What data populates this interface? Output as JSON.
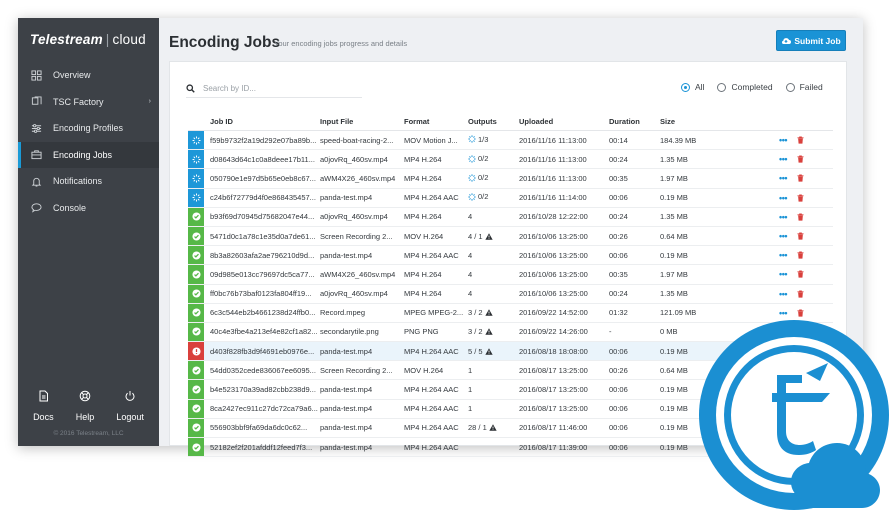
{
  "sidebar": {
    "logo_brand": "Telestream",
    "logo_product": "cloud",
    "items": [
      {
        "label": "Overview",
        "icon": "grid-icon",
        "active": false
      },
      {
        "label": "TSC Factory",
        "icon": "layers-icon",
        "active": false,
        "arrow": "›"
      },
      {
        "label": "Encoding Profiles",
        "icon": "sliders-icon",
        "active": false
      },
      {
        "label": "Encoding Jobs",
        "icon": "briefcase-icon",
        "active": true
      },
      {
        "label": "Notifications",
        "icon": "bell-icon",
        "active": false
      },
      {
        "label": "Console",
        "icon": "chat-icon",
        "active": false
      }
    ],
    "footer": [
      {
        "label": "Docs",
        "icon": "document-icon"
      },
      {
        "label": "Help",
        "icon": "lifebuoy-icon"
      },
      {
        "label": "Logout",
        "icon": "power-icon"
      }
    ],
    "copyright": "© 2016 Telestream, LLC"
  },
  "header": {
    "title": "Encoding Jobs",
    "subtitle": "Your encoding jobs progress and details",
    "submit_label": "Submit Job"
  },
  "search": {
    "placeholder": "Search by ID..."
  },
  "filters": [
    {
      "label": "All",
      "selected": true
    },
    {
      "label": "Completed",
      "selected": false
    },
    {
      "label": "Failed",
      "selected": false
    }
  ],
  "table": {
    "columns": {
      "job_id": "Job ID",
      "input": "Input File",
      "format": "Format",
      "outputs": "Outputs",
      "uploaded": "Uploaded",
      "duration": "Duration",
      "size": "Size"
    },
    "rows": [
      {
        "status": "processing",
        "id": "f59b9732f2a19d292e07ba89b...",
        "input": "speed-boat-racing-2...",
        "format": "MOV Motion J...",
        "outputs": "1/3",
        "warn": false,
        "spin": true,
        "uploaded": "2016/11/16 11:13:00",
        "duration": "00:14",
        "size": "184.39 MB"
      },
      {
        "status": "processing",
        "id": "d08643d64c1c0a8deee17b11...",
        "input": "a0jovRq_460sv.mp4",
        "format": "MP4 H.264",
        "outputs": "0/2",
        "warn": false,
        "spin": true,
        "uploaded": "2016/11/16 11:13:00",
        "duration": "00:24",
        "size": "1.35 MB"
      },
      {
        "status": "processing",
        "id": "050790e1e97d5b65e0eb8c67...",
        "input": "aWM4X26_460sv.mp4",
        "format": "MP4 H.264",
        "outputs": "0/2",
        "warn": false,
        "spin": true,
        "uploaded": "2016/11/16 11:13:00",
        "duration": "00:35",
        "size": "1.97 MB"
      },
      {
        "status": "processing",
        "id": "c24b6f72779d4f0e868435457...",
        "input": "panda-test.mp4",
        "format": "MP4 H.264 AAC",
        "outputs": "0/2",
        "warn": false,
        "spin": true,
        "uploaded": "2016/11/16 11:14:00",
        "duration": "00:06",
        "size": "0.19 MB"
      },
      {
        "status": "done",
        "id": "b93f69d70945d75682047e44...",
        "input": "a0jovRq_460sv.mp4",
        "format": "MP4 H.264",
        "outputs": "4",
        "warn": false,
        "spin": false,
        "uploaded": "2016/10/28 12:22:00",
        "duration": "00:24",
        "size": "1.35 MB"
      },
      {
        "status": "done",
        "id": "5471d0c1a78c1e35d0a7de61...",
        "input": "Screen Recording 2...",
        "format": "MOV H.264",
        "outputs": "4 / 1",
        "warn": true,
        "spin": false,
        "uploaded": "2016/10/06 13:25:00",
        "duration": "00:26",
        "size": "0.64 MB"
      },
      {
        "status": "done",
        "id": "8b3a82603afa2ae796210d9d...",
        "input": "panda-test.mp4",
        "format": "MP4 H.264 AAC",
        "outputs": "4",
        "warn": false,
        "spin": false,
        "uploaded": "2016/10/06 13:25:00",
        "duration": "00:06",
        "size": "0.19 MB"
      },
      {
        "status": "done",
        "id": "09d985e013cc79697dc5ca77...",
        "input": "aWM4X26_460sv.mp4",
        "format": "MP4 H.264",
        "outputs": "4",
        "warn": false,
        "spin": false,
        "uploaded": "2016/10/06 13:25:00",
        "duration": "00:35",
        "size": "1.97 MB"
      },
      {
        "status": "done",
        "id": "ff0bc76b73baf0123fa804ff19...",
        "input": "a0jovRq_460sv.mp4",
        "format": "MP4 H.264",
        "outputs": "4",
        "warn": false,
        "spin": false,
        "uploaded": "2016/10/06 13:25:00",
        "duration": "00:24",
        "size": "1.35 MB"
      },
      {
        "status": "done",
        "id": "6c3c544eb2b4661238d24ffb0...",
        "input": "Record.mpeg",
        "format": "MPEG MPEG-2...",
        "outputs": "3 / 2",
        "warn": true,
        "spin": false,
        "uploaded": "2016/09/22 14:52:00",
        "duration": "01:32",
        "size": "121.09 MB"
      },
      {
        "status": "done",
        "id": "40c4e3fbe4a213ef4e82cf1a82...",
        "input": "secondarytile.png",
        "format": "PNG PNG",
        "outputs": "3 / 2",
        "warn": true,
        "spin": false,
        "uploaded": "2016/09/22 14:26:00",
        "duration": "-",
        "size": "0 MB"
      },
      {
        "status": "error",
        "id": "d403f828fb3d9f4691eb0976e...",
        "input": "panda-test.mp4",
        "format": "MP4 H.264 AAC",
        "outputs": "5 / 5",
        "warn": true,
        "spin": false,
        "uploaded": "2016/08/18 18:08:00",
        "duration": "00:06",
        "size": "0.19 MB"
      },
      {
        "status": "done",
        "id": "54dd0352cede836067ee6095...",
        "input": "Screen Recording 2...",
        "format": "MOV H.264",
        "outputs": "1",
        "warn": false,
        "spin": false,
        "uploaded": "2016/08/17 13:25:00",
        "duration": "00:26",
        "size": "0.64 MB"
      },
      {
        "status": "done",
        "id": "b4e523170a39ad82cbb238d9...",
        "input": "panda-test.mp4",
        "format": "MP4 H.264 AAC",
        "outputs": "1",
        "warn": false,
        "spin": false,
        "uploaded": "2016/08/17 13:25:00",
        "duration": "00:06",
        "size": "0.19 MB"
      },
      {
        "status": "done",
        "id": "8ca2427ec911c27dc72ca79a6...",
        "input": "panda-test.mp4",
        "format": "MP4 H.264 AAC",
        "outputs": "1",
        "warn": false,
        "spin": false,
        "uploaded": "2016/08/17 13:25:00",
        "duration": "00:06",
        "size": "0.19 MB"
      },
      {
        "status": "done",
        "id": "556903bbf9fa69da6dc0c62...",
        "input": "panda-test.mp4",
        "format": "MP4 H.264 AAC",
        "outputs": "28 / 1",
        "warn": true,
        "spin": false,
        "uploaded": "2016/08/17 11:46:00",
        "duration": "00:06",
        "size": "0.19 MB"
      },
      {
        "status": "done",
        "id": "52182ef2f201afddf12feed7f3...",
        "input": "panda-test.mp4",
        "format": "MP4 H.264 AAC",
        "outputs": "",
        "warn": false,
        "spin": false,
        "uploaded": "2016/08/17 11:39:00",
        "duration": "00:06",
        "size": "0.19 MB"
      }
    ]
  },
  "colors": {
    "accent": "#1a93d6",
    "done": "#56b847",
    "error": "#d9403c",
    "sidebar": "#3d4147"
  },
  "badge_icon": "telestream-cloud-logo-icon"
}
